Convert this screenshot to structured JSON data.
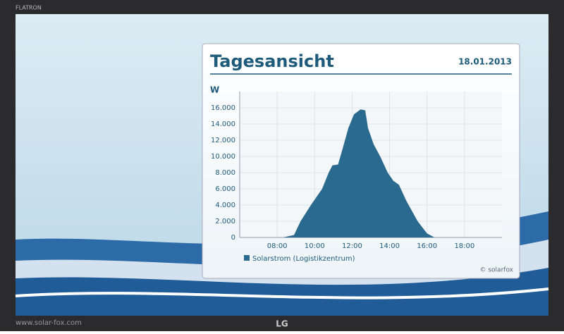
{
  "bezel": {
    "brand": "FLATRON",
    "url": "www.solar-fox.com",
    "logo": "LG"
  },
  "chart_data": {
    "type": "area",
    "title": "Tagesansicht",
    "date": "18.01.2013",
    "y_label": "W",
    "credit": "© solarfox",
    "x": [
      7.5,
      8.3,
      8.9,
      9.25,
      9.8,
      10.4,
      10.75,
      10.95,
      11.25,
      11.5,
      11.8,
      12.1,
      12.45,
      12.7,
      12.85,
      13.15,
      13.5,
      13.9,
      14.2,
      14.5,
      14.9,
      15.5,
      16.0,
      16.4,
      17
    ],
    "series": [
      {
        "name": "Solarstrom (Logistikzentrum)",
        "color": "#2a6a8e",
        "values": [
          0,
          0,
          300,
          2000,
          4000,
          6000,
          8000,
          8900,
          9000,
          11000,
          13500,
          15200,
          15800,
          15700,
          13500,
          11500,
          10000,
          8000,
          7000,
          6500,
          4500,
          2000,
          500,
          0,
          0
        ]
      }
    ],
    "xlim": [
      6,
      20
    ],
    "xticks": [
      {
        "value": 8,
        "label": "08:00"
      },
      {
        "value": 10,
        "label": "10:00"
      },
      {
        "value": 12,
        "label": "12:00"
      },
      {
        "value": 14,
        "label": "14:00"
      },
      {
        "value": 16,
        "label": "16:00"
      },
      {
        "value": 18,
        "label": "18:00"
      }
    ],
    "ylim": [
      0,
      18000
    ],
    "yticks": [
      0,
      {
        "value": 2000,
        "label": "2.000"
      },
      {
        "value": 4000,
        "label": "4.000"
      },
      {
        "value": 6000,
        "label": "6.000"
      },
      {
        "value": 8000,
        "label": "8.000"
      },
      {
        "value": 10000,
        "label": "10.000"
      },
      {
        "value": 12000,
        "label": "12.000"
      },
      {
        "value": 14000,
        "label": "14.000"
      },
      {
        "value": 16000,
        "label": "16.000"
      }
    ],
    "grid": true
  }
}
